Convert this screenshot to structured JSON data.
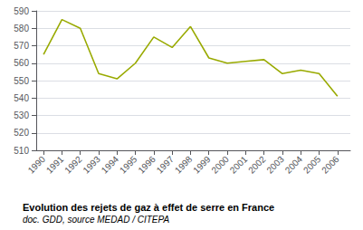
{
  "chart_data": {
    "type": "line",
    "title": "Evolution des rejets de gaz à effet de serre en France",
    "subtitle": "doc. GDD, source MEDAD / CITEPA",
    "x": [
      1990,
      1991,
      1992,
      1993,
      1994,
      1995,
      1996,
      1997,
      1998,
      1999,
      2000,
      2001,
      2002,
      2003,
      2004,
      2005,
      2006
    ],
    "values": [
      565,
      585,
      580,
      554,
      551,
      560,
      575,
      569,
      581,
      563,
      560,
      561,
      562,
      554,
      556,
      554,
      541
    ],
    "color": "#99aa00",
    "xlim": [
      1989.6,
      2006.7
    ],
    "xticks": [
      1990,
      1991,
      1992,
      1993,
      1994,
      1995,
      1996,
      1997,
      1998,
      1999,
      2000,
      2001,
      2002,
      2003,
      2004,
      2005,
      2006
    ],
    "ylim": [
      510,
      590
    ],
    "yticks": [
      510,
      520,
      530,
      540,
      550,
      560,
      570,
      580,
      590
    ],
    "grid": true
  }
}
